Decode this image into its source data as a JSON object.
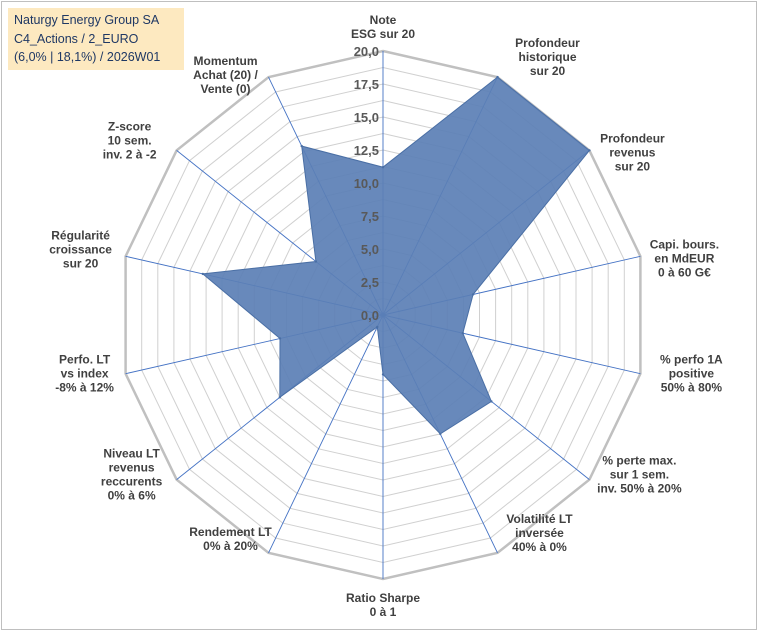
{
  "title_box": {
    "line1": "Naturgy Energy Group SA",
    "line2": "C4_Actions / 2_EURO",
    "line3": "(6,0% | 18,1%) / 2026W01"
  },
  "colors": {
    "fill": "#5b7fb5",
    "stroke": "#4a6fa5",
    "grid": "#d0d0d0",
    "outer": "#c0c0c0",
    "spoke": "#4472c4",
    "title_bg": "#fde9c0"
  },
  "chart_data": {
    "type": "radar",
    "r_min": 0,
    "r_max": 20,
    "grid_step": 1.25,
    "r_ticks": [
      "0,0",
      "2,5",
      "5,0",
      "7,5",
      "10,0",
      "12,5",
      "15,0",
      "17,5",
      "20,0"
    ],
    "axes": [
      [
        "Note",
        "ESG sur 20"
      ],
      [
        "Profondeur",
        "historique",
        "sur 20"
      ],
      [
        "Profondeur",
        "revenus",
        "sur 20"
      ],
      [
        "Capi. bours.",
        "en MdEUR",
        "0 à 60 G€"
      ],
      [
        "% perfo 1A",
        "positive",
        "50% à 80%"
      ],
      [
        "% perte max.",
        "sur 1 sem.",
        "inv. 50% à 20%"
      ],
      [
        "Volatilité LT",
        "inversée",
        "40% à 0%"
      ],
      [
        "Ratio Sharpe",
        "0 à 1"
      ],
      [
        "Rendement LT",
        "0% à 20%"
      ],
      [
        "Niveau LT",
        "revenus",
        "reccurents",
        "0% à 6%"
      ],
      [
        "Perfo. LT",
        "vs index",
        "-8% à 12%"
      ],
      [
        "Régularité",
        "croissance",
        "sur 20"
      ],
      [
        "Z-score",
        "10 sem.",
        "inv. 2 à -2"
      ],
      [
        "Momentum",
        "Achat (20) /",
        "Vente (0)"
      ]
    ],
    "series": [
      {
        "name": "Naturgy Energy Group SA",
        "values": [
          11.2,
          20.0,
          20.0,
          7.0,
          6.2,
          10.5,
          10.0,
          4.5,
          1.0,
          10.0,
          8.0,
          14.0,
          6.5,
          14.2
        ]
      }
    ]
  }
}
